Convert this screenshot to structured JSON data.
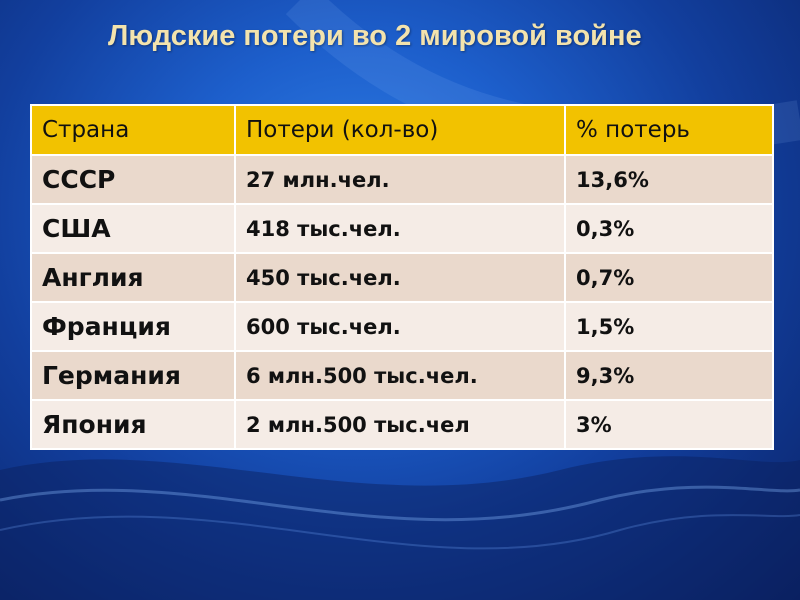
{
  "slide": {
    "title": "Людские потери во 2 мировой войне",
    "colors": {
      "background": "#1d5fcc",
      "title": "#f3e3ad",
      "header_fill": "#f2c200",
      "row_fill_odd": "#ead9cc",
      "row_fill_even": "#f5ece6"
    }
  },
  "table": {
    "headers": [
      "Страна",
      "Потери (кол-во)",
      "% потерь"
    ],
    "rows": [
      {
        "country": "СССР",
        "losses": "27 млн.чел.",
        "percent": "13,6%"
      },
      {
        "country": "США",
        "losses": "418 тыс.чел.",
        "percent": "0,3%"
      },
      {
        "country": "Англия",
        "losses": "450 тыс.чел.",
        "percent": "0,7%"
      },
      {
        "country": "Франция",
        "losses": "600 тыс.чел.",
        "percent": "1,5%"
      },
      {
        "country": "Германия",
        "losses": "6 млн.500 тыс.чел.",
        "percent": "9,3%"
      },
      {
        "country": "Япония",
        "losses": "2 млн.500 тыс.чел",
        "percent": "3%"
      }
    ]
  }
}
